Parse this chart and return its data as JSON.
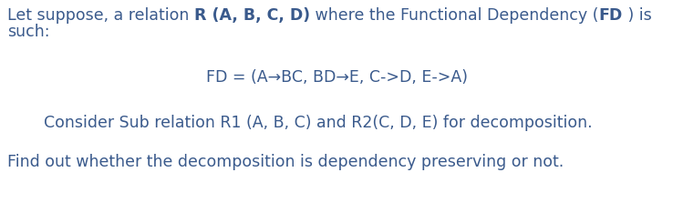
{
  "bg_color": "#ffffff",
  "text_color": "#3a5a8c",
  "fontsize": 12.5,
  "line1_parts": [
    {
      "text": "Let suppose, a relation ",
      "bold": false
    },
    {
      "text": "R (A, B, C, D)",
      "bold": true
    },
    {
      "text": " where the Functional Dependency (",
      "bold": false
    },
    {
      "text": "FD",
      "bold": true
    },
    {
      "text": " ) is",
      "bold": false
    }
  ],
  "line2": "such:",
  "fd_line": "FD = (A→BC, BD→E, C->D, E->A)",
  "consider_line": "Consider Sub relation R1 (A, B, C) and R2(C, D, E) for decomposition.",
  "find_line": "Find out whether the decomposition is dependency preserving or not.",
  "fig_width": 7.38,
  "fig_height": 2.34,
  "dpi": 100
}
